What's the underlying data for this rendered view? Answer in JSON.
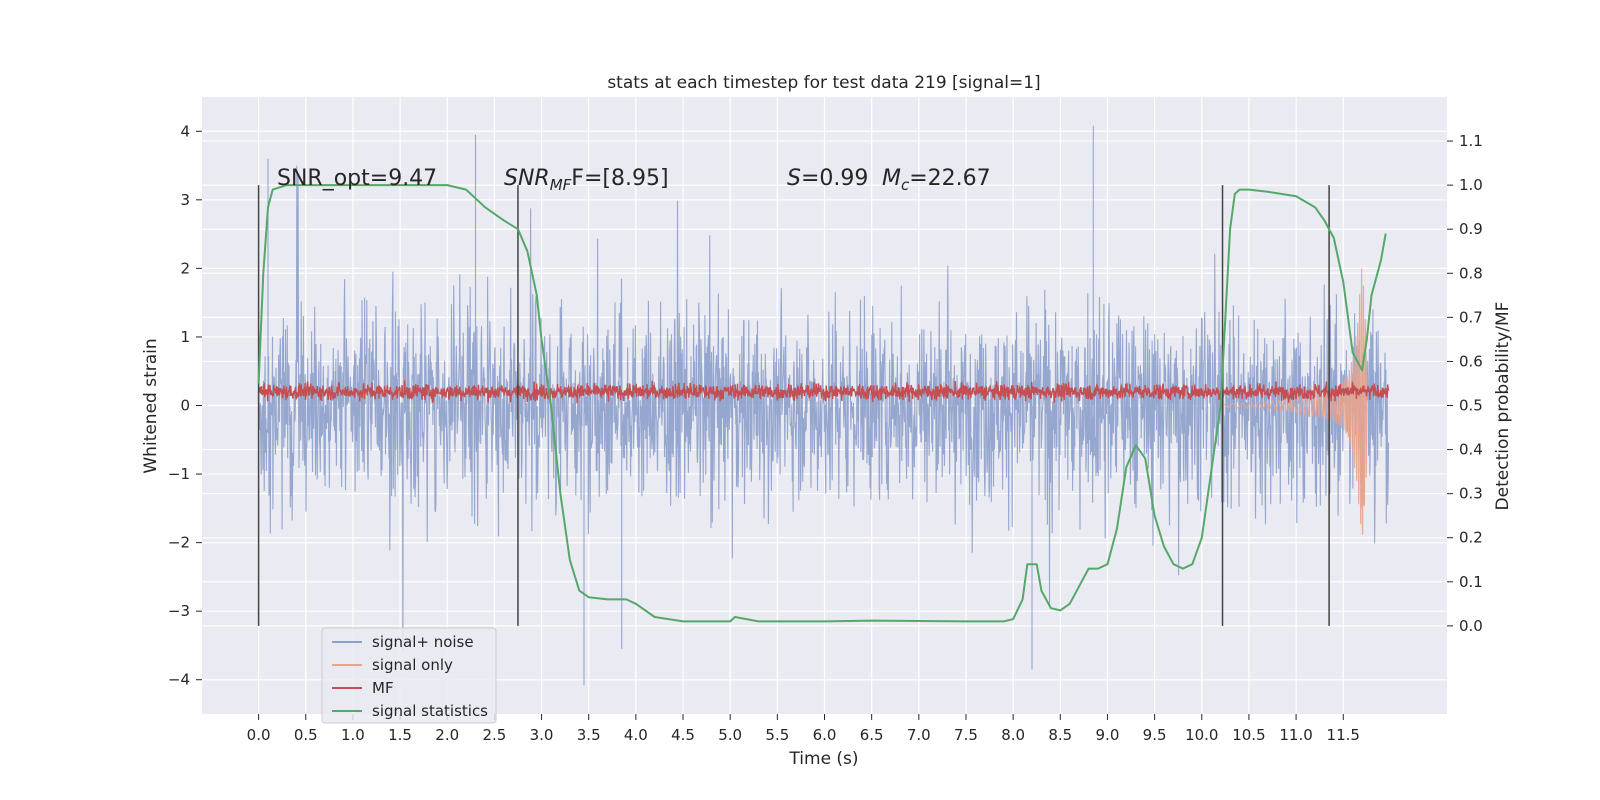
{
  "chart_data": {
    "type": "line",
    "title": "stats at each timestep for test data 219 [signal=1]",
    "xlabel": "Time (s)",
    "ylabel_left": "Whitened strain",
    "ylabel_right": "Detection probability/MF",
    "xlim": [
      -0.6,
      12.6
    ],
    "ylim_left": [
      -4.5,
      4.5
    ],
    "ylim_right": [
      -0.2,
      1.2
    ],
    "x_ticks": [
      "0.0",
      "0.5",
      "1.0",
      "1.5",
      "2.0",
      "2.5",
      "3.0",
      "3.5",
      "4.0",
      "4.5",
      "5.0",
      "5.5",
      "6.0",
      "6.5",
      "7.0",
      "7.5",
      "8.0",
      "8.5",
      "9.0",
      "9.5",
      "10.0",
      "10.5",
      "11.0",
      "11.5"
    ],
    "y_ticks_left": [
      "4",
      "3",
      "2",
      "1",
      "0",
      "−1",
      "−2",
      "−3",
      "−4"
    ],
    "y_ticks_right": [
      "1.1",
      "1.0",
      "0.9",
      "0.8",
      "0.7",
      "0.6",
      "0.5",
      "0.4",
      "0.3",
      "0.2",
      "0.1",
      "0.0"
    ],
    "grid": true,
    "legend_position": "lower-left",
    "annotations": {
      "snr_opt": "SNR_opt=9.47",
      "snr_mf_label": "SNR",
      "snr_mf_sub": "MF",
      "snr_mf_value": "F=[8.95]",
      "s_label": "S",
      "s_value": "=0.99",
      "mc_label": "M",
      "mc_sub": "c",
      "mc_value": "=22.67"
    },
    "vertical_markers": [
      0.0,
      2.75,
      10.22,
      11.35
    ],
    "series": [
      {
        "name": "signal+ noise",
        "color": "#8da0cb",
        "axis": "left",
        "description_of_values": "noise-like whitened strain, mostly within ±1.3 with peaks to about ±3.5",
        "x_range": [
          0.0,
          11.98
        ],
        "peak_values": [
          {
            "x": 0.1,
            "y": 3.6
          },
          {
            "x": 2.3,
            "y": 3.95
          },
          {
            "x": 8.85,
            "y": 4.08
          },
          {
            "x": 3.45,
            "y": -4.08
          },
          {
            "x": 8.2,
            "y": -3.85
          },
          {
            "x": 3.85,
            "y": -3.55
          }
        ]
      },
      {
        "name": "signal only",
        "color": "#e8a48c",
        "axis": "left",
        "x": [
          10.2,
          10.6,
          11.0,
          11.3,
          11.45,
          11.55,
          11.6,
          11.65,
          11.7,
          11.75
        ],
        "envelope": [
          0.02,
          0.05,
          0.1,
          0.18,
          0.28,
          0.45,
          0.7,
          1.2,
          2.1,
          0.9
        ]
      },
      {
        "name": "MF",
        "color": "#c44e52",
        "axis": "left",
        "description_of_values": "narrow noisy band between about 0.05 and 0.35",
        "x_range": [
          0.0,
          11.98
        ],
        "band": [
          0.05,
          0.35
        ]
      },
      {
        "name": "signal statistics",
        "color": "#55a868",
        "axis": "right",
        "x": [
          0.0,
          0.05,
          0.1,
          0.15,
          0.3,
          0.6,
          1.0,
          1.5,
          2.0,
          2.2,
          2.4,
          2.6,
          2.75,
          2.85,
          2.95,
          3.0,
          3.1,
          3.2,
          3.3,
          3.4,
          3.5,
          3.7,
          3.9,
          4.0,
          4.2,
          4.5,
          5.0,
          5.05,
          5.3,
          6.0,
          6.5,
          7.0,
          7.5,
          7.9,
          8.0,
          8.1,
          8.15,
          8.25,
          8.3,
          8.4,
          8.5,
          8.6,
          8.7,
          8.8,
          8.9,
          9.0,
          9.1,
          9.2,
          9.3,
          9.4,
          9.5,
          9.6,
          9.7,
          9.8,
          9.9,
          10.0,
          10.1,
          10.2,
          10.3,
          10.35,
          10.4,
          10.5,
          10.7,
          11.0,
          11.2,
          11.3,
          11.4,
          11.5,
          11.6,
          11.7,
          11.75,
          11.8,
          11.9,
          11.95
        ],
        "y": [
          0.55,
          0.8,
          0.95,
          0.99,
          1.0,
          1.0,
          1.0,
          1.0,
          1.0,
          0.99,
          0.95,
          0.92,
          0.9,
          0.85,
          0.75,
          0.65,
          0.5,
          0.3,
          0.15,
          0.08,
          0.065,
          0.06,
          0.06,
          0.05,
          0.02,
          0.01,
          0.01,
          0.02,
          0.01,
          0.01,
          0.012,
          0.011,
          0.01,
          0.01,
          0.015,
          0.06,
          0.14,
          0.14,
          0.08,
          0.04,
          0.035,
          0.05,
          0.09,
          0.13,
          0.13,
          0.14,
          0.22,
          0.36,
          0.41,
          0.38,
          0.25,
          0.18,
          0.14,
          0.13,
          0.14,
          0.2,
          0.35,
          0.5,
          0.9,
          0.98,
          0.99,
          0.99,
          0.985,
          0.975,
          0.95,
          0.92,
          0.88,
          0.78,
          0.62,
          0.58,
          0.65,
          0.75,
          0.83,
          0.89
        ]
      }
    ]
  }
}
